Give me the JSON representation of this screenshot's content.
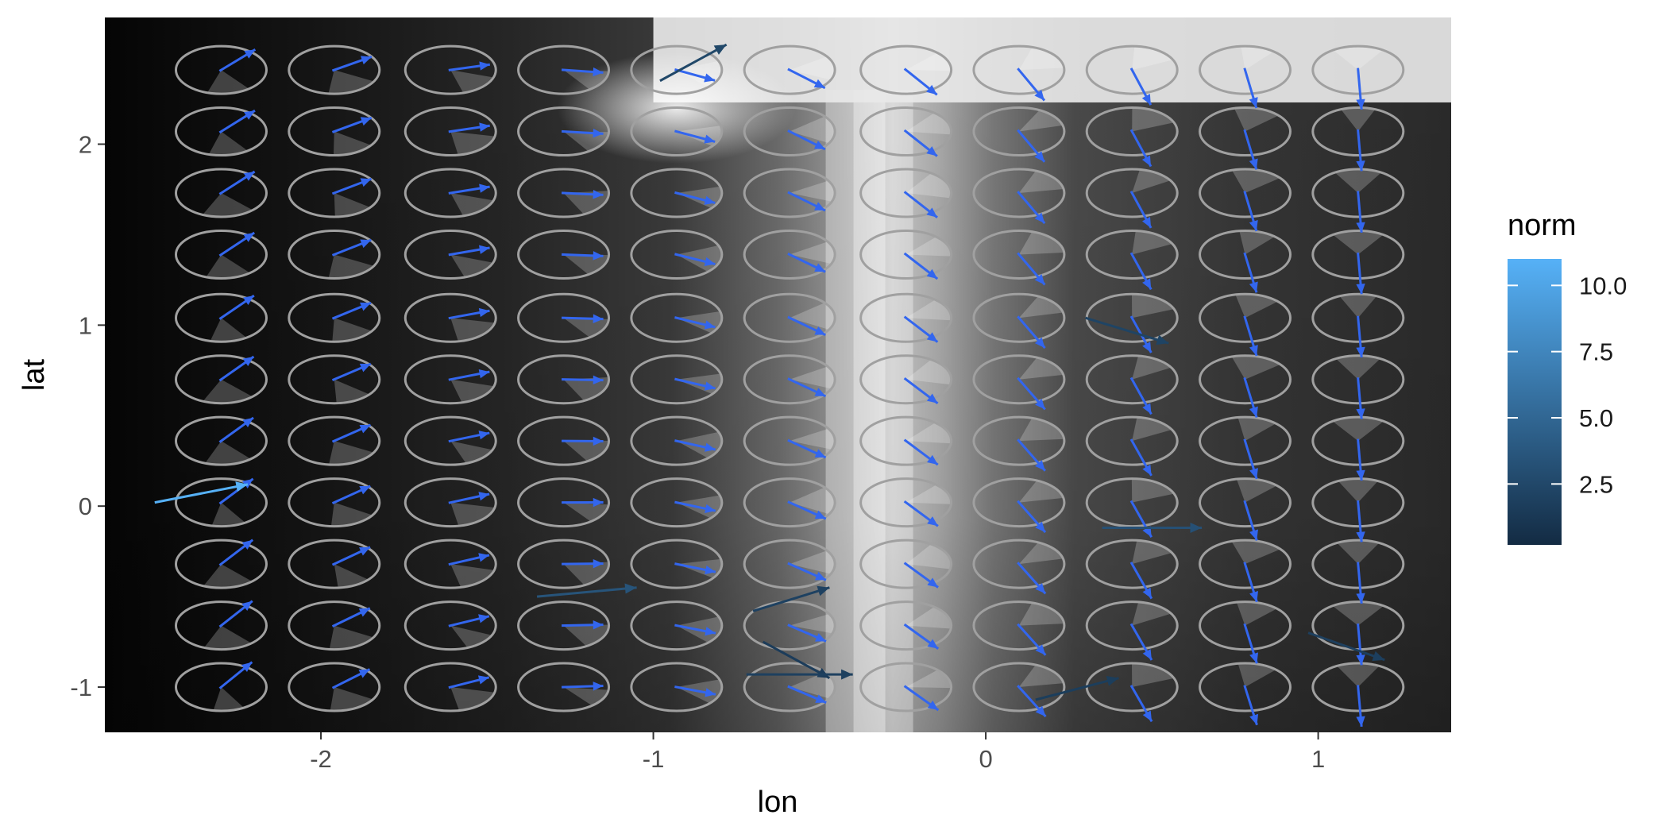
{
  "chart_data": {
    "type": "vector-field",
    "xlabel": "lon",
    "ylabel": "lat",
    "xlim": [
      -2.65,
      1.4
    ],
    "ylim": [
      -1.25,
      2.7
    ],
    "x_ticks": [
      -2,
      -1,
      0,
      1
    ],
    "x_tick_labels": [
      "-2",
      "-1",
      "0",
      "1"
    ],
    "y_ticks": [
      -1,
      0,
      1,
      2
    ],
    "y_tick_labels": [
      "-1",
      "0",
      "1",
      "2"
    ],
    "grid_lon": [
      -2.3,
      -1.96,
      -1.61,
      -1.27,
      -0.93,
      -0.59,
      -0.24,
      0.1,
      0.44,
      0.78,
      1.12
    ],
    "grid_lat": [
      -1.0,
      -0.66,
      -0.32,
      0.02,
      0.36,
      0.7,
      1.04,
      1.39,
      1.73,
      2.07,
      2.41
    ],
    "background": {
      "description": "grey-scale field",
      "bright_ridges": [
        {
          "orientation": "vertical",
          "lon": -0.35,
          "lat_from": -1.25,
          "lat_to": 2.3
        },
        {
          "orientation": "horizontal",
          "lat": 2.45,
          "lon_from": -1.0,
          "lon_to": 1.4
        }
      ]
    },
    "legend": {
      "title": "norm",
      "position": "right",
      "range": [
        0.2,
        11
      ],
      "ticks": [
        2.5,
        5.0,
        7.5,
        10.0
      ],
      "tick_labels": [
        "2.5",
        "5.0",
        "7.5",
        "10.0"
      ],
      "color_low": "#132B43",
      "color_high": "#56B1F7"
    },
    "grid_arrow_color": "#3366EE",
    "ellipse_color": "#A0A0A0",
    "highlight_arrows": [
      {
        "x0": -2.5,
        "y0": 0.02,
        "x1": -2.22,
        "y1": 0.12,
        "norm": 11.0
      },
      {
        "x0": -0.98,
        "y0": 2.35,
        "x1": -0.78,
        "y1": 2.55,
        "norm": 2.5
      },
      {
        "x0": 0.3,
        "y0": 1.04,
        "x1": 0.55,
        "y1": 0.9,
        "norm": 2.2
      },
      {
        "x0": 0.35,
        "y0": -0.12,
        "x1": 0.65,
        "y1": -0.12,
        "norm": 3.2
      },
      {
        "x0": -1.35,
        "y0": -0.5,
        "x1": -1.05,
        "y1": -0.45,
        "norm": 3.5
      },
      {
        "x0": -0.7,
        "y0": -0.58,
        "x1": -0.47,
        "y1": -0.45,
        "norm": 2.0
      },
      {
        "x0": -0.67,
        "y0": -0.75,
        "x1": -0.47,
        "y1": -0.95,
        "norm": 1.6
      },
      {
        "x0": -0.72,
        "y0": -0.93,
        "x1": -0.4,
        "y1": -0.93,
        "norm": 1.9
      },
      {
        "x0": 0.15,
        "y0": -1.07,
        "x1": 0.4,
        "y1": -0.95,
        "norm": 1.7
      },
      {
        "x0": 0.97,
        "y0": -0.7,
        "x1": 1.2,
        "y1": -0.85,
        "norm": 1.8
      }
    ]
  }
}
